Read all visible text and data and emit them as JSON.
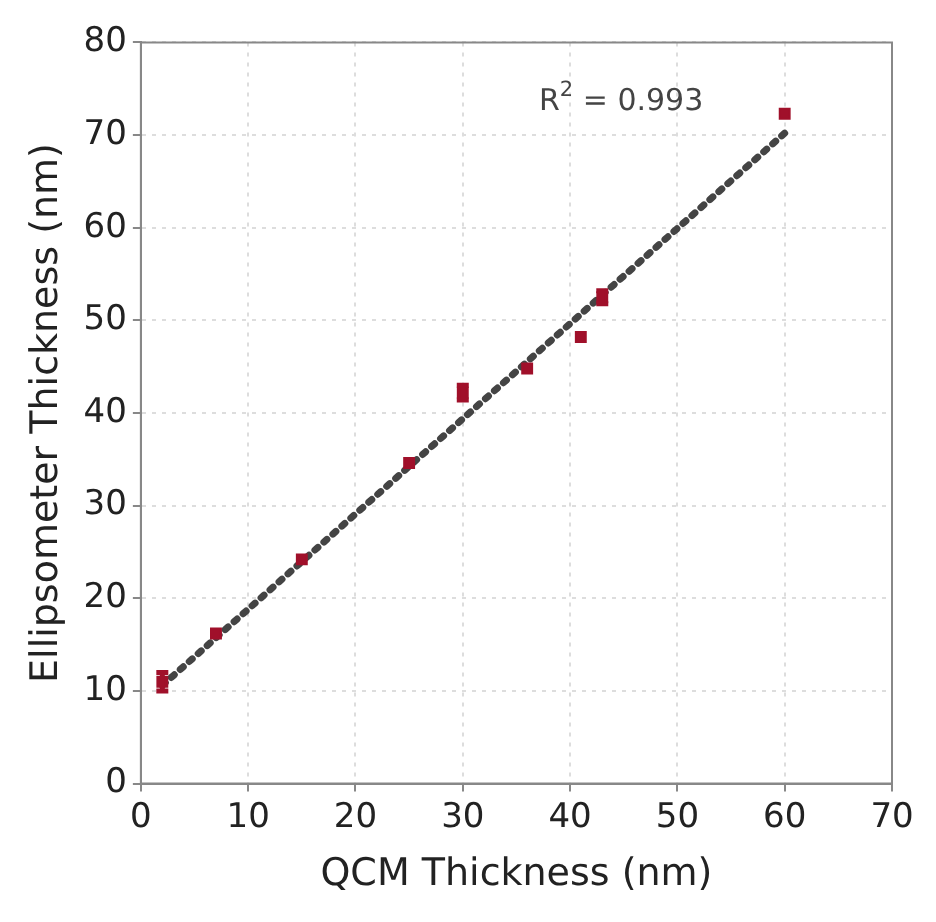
{
  "chart_data": {
    "type": "scatter",
    "xlabel": "QCM Thickness (nm)",
    "ylabel": "Ellipsometer Thickness (nm)",
    "annotations": [
      "R$^{2}$ = 0.993"
    ],
    "series": [
      {
        "color": "#a0102a",
        "marker": "square",
        "x": [
          2,
          7,
          15,
          25,
          30,
          36,
          41,
          43,
          60
        ],
        "values": [
          11,
          16.2,
          24.2,
          34.6,
          42.2,
          44.8,
          48.2,
          52.5,
          72.3
        ],
        "errors": [
          1,
          null,
          null,
          null,
          0.8,
          null,
          null,
          0.7,
          null
        ]
      },
      {
        "type": "line",
        "color": "#444444",
        "line_style": "dotted",
        "marker": "none",
        "x": [
          2,
          60
        ],
        "values": [
          10.6,
          70.2
        ]
      }
    ],
    "xlim": [
      0,
      70
    ],
    "xticks": [
      0,
      10,
      20,
      30,
      40,
      50,
      60,
      70
    ],
    "ylim": [
      0,
      80
    ],
    "yticks": [
      0,
      10,
      20,
      30,
      40,
      50,
      60,
      70,
      80
    ],
    "grid": true,
    "legend": false
  }
}
